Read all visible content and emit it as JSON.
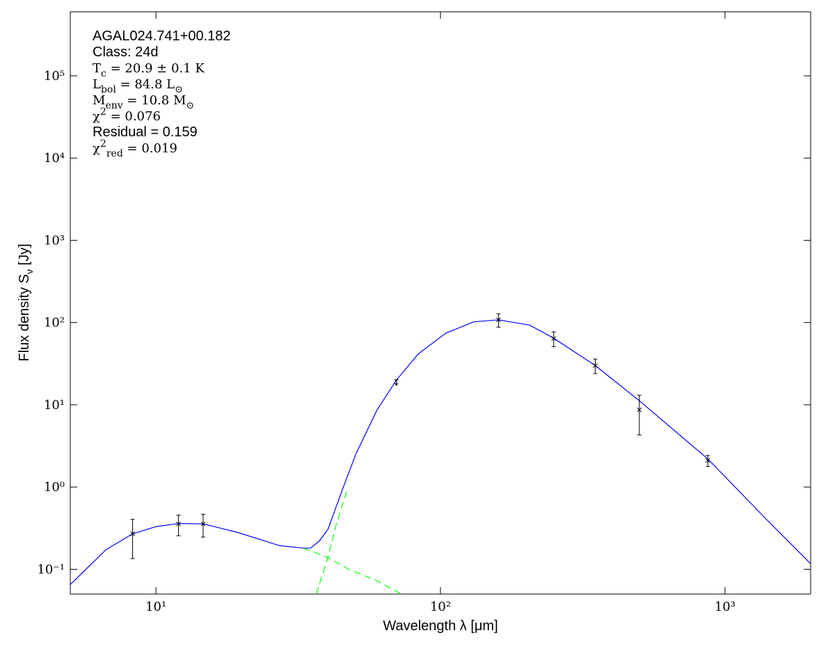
{
  "chart_data": {
    "type": "sed",
    "xlabel": "Wavelength λ [μm]",
    "ylabel": [
      "Flux density ",
      "S",
      {
        "sub": "ν"
      },
      " [Jy]"
    ],
    "xscale": "log",
    "yscale": "log",
    "xlim": [
      5,
      2000
    ],
    "ylim": [
      0.05,
      600000
    ],
    "xticks": [
      {
        "value": 10,
        "label": "10¹"
      },
      {
        "value": 100,
        "label": "10²"
      },
      {
        "value": 1000,
        "label": "10³"
      }
    ],
    "yticks": [
      {
        "value": 0.1,
        "label": "10⁻¹"
      },
      {
        "value": 1,
        "label": "10⁰"
      },
      {
        "value": 10,
        "label": "10¹"
      },
      {
        "value": 100,
        "label": "10²"
      },
      {
        "value": 1000,
        "label": "10³"
      },
      {
        "value": 10000,
        "label": "10⁴"
      },
      {
        "value": 100000,
        "label": "10⁵"
      }
    ],
    "annotations": [
      {
        "style": "text",
        "parts": [
          "AGAL024.741+00.182"
        ]
      },
      {
        "style": "text",
        "parts": [
          "Class: 24d"
        ]
      },
      {
        "style": "math",
        "parts": [
          "T",
          {
            "sub": "c"
          },
          " = 20.9 ± 0.1 K"
        ]
      },
      {
        "style": "math",
        "parts": [
          "L",
          {
            "sub": "bol"
          },
          " = 84.8 L",
          {
            "sub": "⊙"
          }
        ]
      },
      {
        "style": "math",
        "parts": [
          "M",
          {
            "sub": "env"
          },
          " = 10.8 M",
          {
            "sub": "⊙"
          }
        ]
      },
      {
        "style": "math",
        "parts": [
          "χ",
          {
            "sup": "2"
          },
          " = 0.076"
        ]
      },
      {
        "style": "text",
        "parts": [
          "Residual = 0.159"
        ]
      },
      {
        "style": "math",
        "parts": [
          "χ",
          {
            "sup": "2"
          },
          {
            "sub": "red"
          },
          " = 0.019"
        ]
      }
    ],
    "series": [
      {
        "style": "errorbar",
        "color": "#000000",
        "x": [
          8.28,
          12,
          14.65,
          70,
          160,
          250,
          350,
          500,
          870
        ],
        "values": [
          0.27,
          0.356,
          0.356,
          19,
          108,
          64,
          30,
          8.7,
          2.1
        ],
        "errors": [
          0.135,
          0.1,
          0.11,
          null,
          20,
          13,
          6,
          4.4,
          0.32
        ],
        "upper_limit": [
          false,
          false,
          false,
          true,
          false,
          false,
          false,
          false,
          false
        ]
      },
      {
        "style": "solid",
        "color": "#0000ff",
        "x": [
          5,
          6.67,
          8.28,
          10,
          12,
          14.7,
          19.4,
          27.2,
          33.5,
          35,
          37.5,
          40.3,
          45.1,
          50.5,
          59.8,
          70,
          83.6,
          104.6,
          131,
          160,
          206,
          250,
          350,
          500,
          870,
          1393,
          2000
        ],
        "values": [
          0.065,
          0.173,
          0.27,
          0.33,
          0.36,
          0.356,
          0.28,
          0.194,
          0.18,
          0.182,
          0.22,
          0.31,
          0.91,
          2.55,
          8.6,
          20,
          41.6,
          74.6,
          102,
          108,
          93,
          64.5,
          30,
          11.2,
          2.2,
          0.41,
          0.117
        ]
      },
      {
        "style": "dashed",
        "color": "#00ff00",
        "x": [
          33,
          40,
          47.7,
          60,
          72.8
        ],
        "values": [
          0.18,
          0.14,
          0.1,
          0.072,
          0.05
        ]
      },
      {
        "style": "dashed",
        "color": "#00ff00",
        "x": [
          36.6,
          40.3,
          43,
          46.9
        ],
        "values": [
          0.05,
          0.142,
          0.35,
          0.9
        ]
      }
    ]
  }
}
